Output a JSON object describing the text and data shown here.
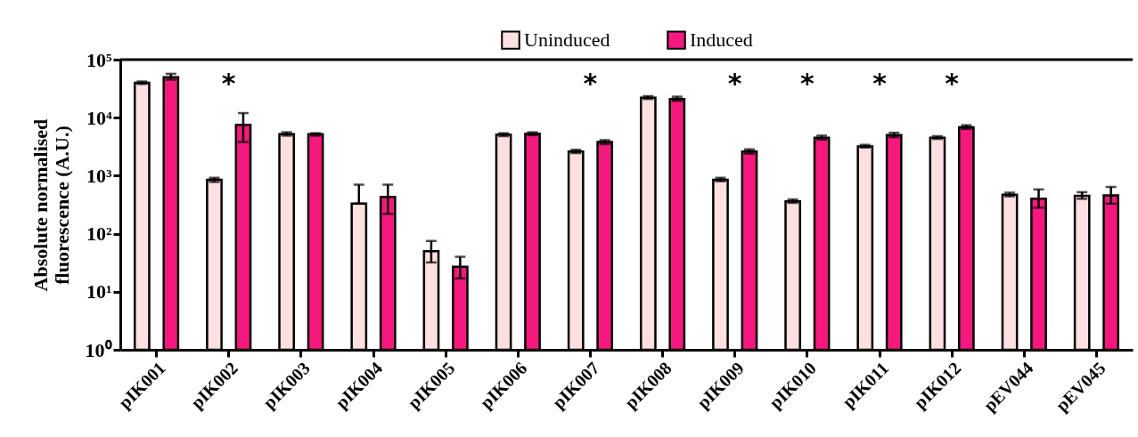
{
  "chart_data": {
    "type": "bar",
    "ylabel": "Absolute normalised fluorescence (A.U.)",
    "log": true,
    "legend": "top",
    "grid": false,
    "categories": [
      "pIK001",
      "pIK002",
      "pIK003",
      "pIK004",
      "pIK005",
      "pIK006",
      "pIK007",
      "pIK008",
      "pIK009",
      "pIK010",
      "pIK011",
      "pIK012",
      "pEV044",
      "pEV045"
    ],
    "ylim": [
      1,
      100000
    ],
    "yticks": [
      {
        "value": 1,
        "label": "10⁰"
      },
      {
        "value": 10,
        "label": "10¹"
      },
      {
        "value": 100,
        "label": "10²"
      },
      {
        "value": 1000,
        "label": "10³"
      },
      {
        "value": 10000,
        "label": "10⁴"
      },
      {
        "value": 100000,
        "label": "10⁵"
      }
    ],
    "series": [
      {
        "name": "Uninduced",
        "color": "#fde0df",
        "values": [
          40000,
          850,
          5200,
          330,
          50,
          5100,
          2600,
          22000,
          850,
          360,
          3200,
          4500,
          470,
          450
        ],
        "errors": [
          [
            38000,
            42000
          ],
          [
            780,
            920
          ],
          [
            4900,
            5600
          ],
          [
            330,
            700
          ],
          [
            32,
            75
          ],
          [
            4800,
            5400
          ],
          [
            2450,
            2800
          ],
          [
            21000,
            23500
          ],
          [
            800,
            920
          ],
          [
            340,
            390
          ],
          [
            3050,
            3400
          ],
          [
            4300,
            4800
          ],
          [
            440,
            510
          ],
          [
            400,
            520
          ]
        ]
      },
      {
        "name": "Induced",
        "color": "#f5197d",
        "values": [
          50000,
          7500,
          5200,
          430,
          27,
          5300,
          3800,
          21000,
          2600,
          4500,
          5000,
          6800,
          400,
          460
        ],
        "errors": [
          [
            45000,
            57000
          ],
          [
            3800,
            12000
          ],
          [
            4900,
            5400
          ],
          [
            220,
            700
          ],
          [
            17,
            40
          ],
          [
            5000,
            5600
          ],
          [
            3500,
            4100
          ],
          [
            19500,
            23000
          ],
          [
            2400,
            2850
          ],
          [
            4200,
            4900
          ],
          [
            4600,
            5500
          ],
          [
            6400,
            7400
          ],
          [
            280,
            580
          ],
          [
            330,
            640
          ]
        ]
      }
    ],
    "annotations": [
      "*",
      "*",
      "*",
      "*",
      "*",
      "*"
    ]
  }
}
